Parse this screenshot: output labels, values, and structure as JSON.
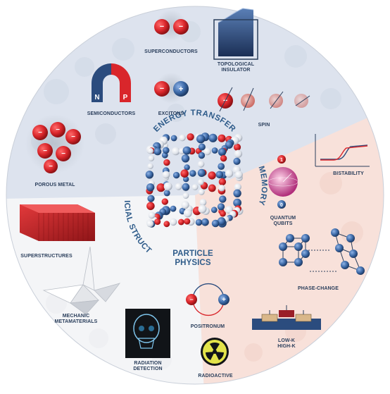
{
  "center_labels": {
    "energy_transfer": "ENERGY TRANSFER",
    "memory": "MEMORY",
    "artificial_structures": "ARTIFICIAL STRUCTURES",
    "particle_physics_line1": "PARTICLE",
    "particle_physics_line2": "PHYSICS"
  },
  "items": {
    "superconductors": "SUPERCONDUCTORS",
    "topological_insulator_line1": "TOPOLOGICAL",
    "topological_insulator_line2": "INSULATOR",
    "semiconductors": "SEMICONDUCTORS",
    "excitons": "EXCITONS",
    "spin": "SPIN",
    "porous_metal": "POROUS METAL",
    "bistability": "BISTABILITY",
    "quantum_qubits_line1": "QUANTUM",
    "quantum_qubits_line2": "QUBITS",
    "superstructures": "SUPERSTRUCTURES",
    "phase_change": "PHASE-CHANGE",
    "mechanic_metamaterials_line1": "MECHANIC",
    "mechanic_metamaterials_line2": "METAMATERIALS",
    "positronium": "POSITRONUM",
    "low_high_k_line1": "LOW-K",
    "low_high_k_line2": "HIGH-K",
    "radiation_detection_line1": "RADIATION",
    "radiation_detection_line2": "DETECTION",
    "radioactive": "RADIOACTIVE"
  },
  "glyphs": {
    "minus": "−",
    "plus": "+",
    "magnet_n": "N",
    "magnet_p": "P",
    "qubit_one": "1",
    "qubit_zero": "0"
  },
  "colors": {
    "red": "#d9262b",
    "navy": "#2b4c7e",
    "label": "#2b3f5c",
    "arc_text": "#2f5c8a",
    "sector_blue": "#dde3ee",
    "sector_pink": "#f8e1da",
    "sector_white": "#f4f5f7"
  }
}
